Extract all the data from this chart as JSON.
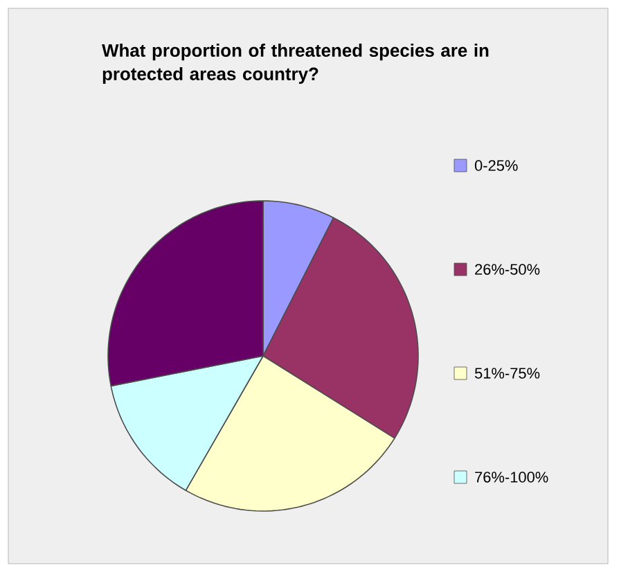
{
  "chart_data": {
    "type": "pie",
    "title": "What proportion of threatened species are in protected areas country?",
    "categories": [
      "0-25%",
      "26%-50%",
      "51%-75%",
      "76%-100%",
      null
    ],
    "values": [
      7.5,
      26.4,
      24.4,
      13.6,
      28.1
    ],
    "colors": [
      "#9999ff",
      "#993366",
      "#ffffcc",
      "#ccffff",
      "#660066"
    ],
    "legend": "right"
  }
}
